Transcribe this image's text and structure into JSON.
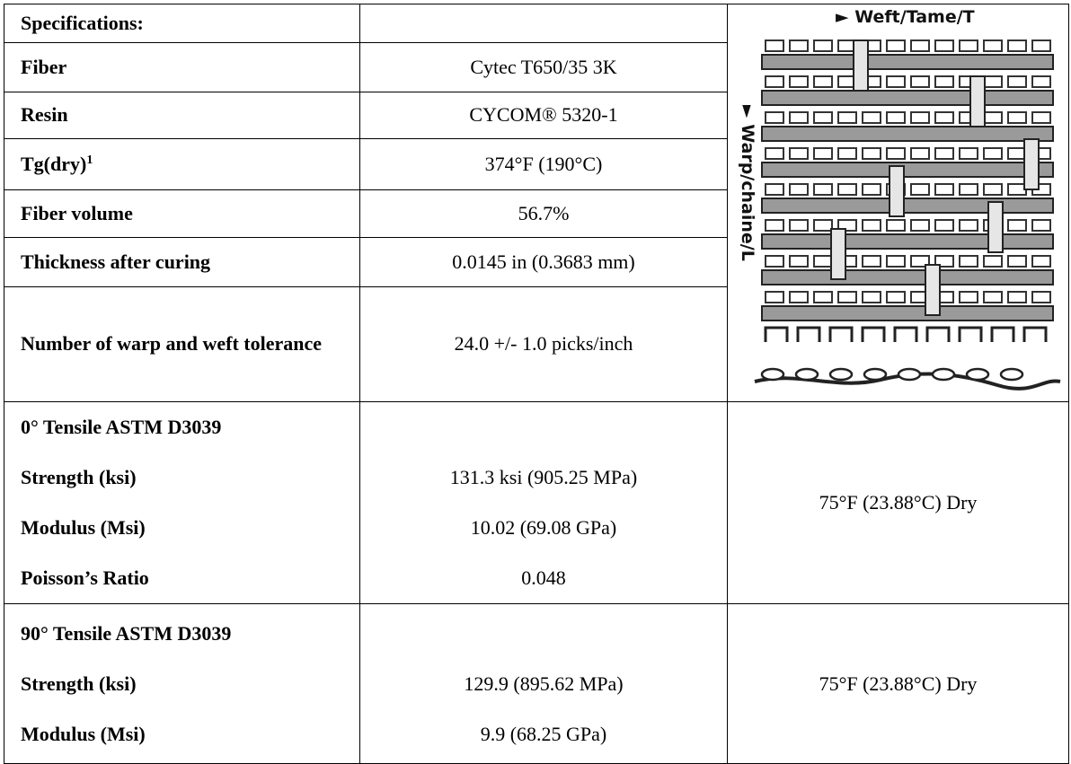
{
  "table": {
    "header": "Specifications:",
    "rows": [
      {
        "label": "Fiber",
        "value": "Cytec T650/35 3K"
      },
      {
        "label": "Resin",
        "value": "CYCOM® 5320-1"
      },
      {
        "label": "Tg(dry)",
        "label_sup": "1",
        "value": "374°F (190°C)"
      },
      {
        "label": "Fiber volume",
        "value": "56.7%"
      },
      {
        "label": "Thickness after curing",
        "value": "0.0145 in (0.3683 mm)"
      },
      {
        "label": "Number of warp and weft tolerance",
        "value": "24.0 +/- 1.0 picks/inch"
      }
    ],
    "figure": {
      "weft_label": "Weft/Tame/T",
      "warp_label": "Warp/chaine/L"
    },
    "tests": [
      {
        "title": "0° Tensile ASTM D3039",
        "properties": [
          {
            "name": "Strength (ksi)",
            "value": "131.3 ksi (905.25 MPa)"
          },
          {
            "name": "Modulus (Msi)",
            "value": "10.02 (69.08 GPa)"
          },
          {
            "name": "Poisson’s Ratio",
            "value": "0.048"
          }
        ],
        "condition": "75°F (23.88°C) Dry"
      },
      {
        "title": "90° Tensile ASTM D3039",
        "properties": [
          {
            "name": "Strength (ksi)",
            "value": "129.9 (895.62 MPa)"
          },
          {
            "name": "Modulus (Msi)",
            "value": "9.9 (68.25 GPa)"
          }
        ],
        "condition": "75°F (23.88°C) Dry"
      }
    ]
  }
}
